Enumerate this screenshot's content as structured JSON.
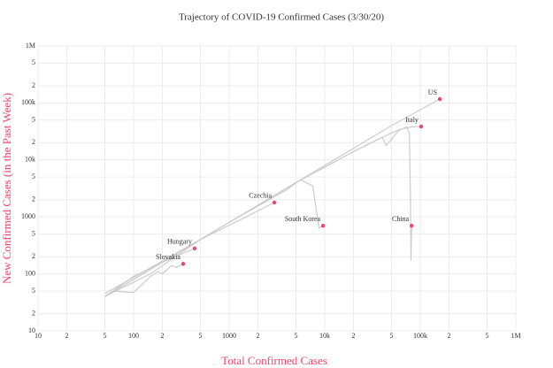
{
  "chart_data": {
    "type": "line",
    "title": "Trajectory of COVID-19 Confirmed Cases (3/30/20)",
    "x_label": "Total Confirmed Cases",
    "y_label": "New Confirmed Cases (in the Past Week)",
    "log_x": true,
    "log_y": true,
    "grid": true,
    "point_color": "#f0466e",
    "xlim": [
      10,
      1000000
    ],
    "ylim": [
      10,
      1000000
    ],
    "xticks": [
      10,
      {
        "value": 20,
        "label": "2"
      },
      {
        "value": 50,
        "label": "5"
      },
      100,
      {
        "value": 200,
        "label": "2"
      },
      {
        "value": 500,
        "label": "5"
      },
      1000,
      {
        "value": 2000,
        "label": "2"
      },
      {
        "value": 5000,
        "label": "5"
      },
      {
        "value": 10000,
        "label": "10k"
      },
      {
        "value": 20000,
        "label": "2"
      },
      {
        "value": 50000,
        "label": "5"
      },
      {
        "value": 100000,
        "label": "100k"
      },
      {
        "value": 200000,
        "label": "2"
      },
      {
        "value": 500000,
        "label": "5"
      },
      {
        "value": 1000000,
        "label": "1M"
      }
    ],
    "yticks": [
      10,
      {
        "value": 20,
        "label": "2"
      },
      {
        "value": 50,
        "label": "5"
      },
      100,
      {
        "value": 200,
        "label": "2"
      },
      {
        "value": 500,
        "label": "5"
      },
      1000,
      {
        "value": 2000,
        "label": "2"
      },
      {
        "value": 5000,
        "label": "5"
      },
      {
        "value": 10000,
        "label": "10k"
      },
      {
        "value": 20000,
        "label": "2"
      },
      {
        "value": 50000,
        "label": "5"
      },
      {
        "value": 100000,
        "label": "100k"
      },
      {
        "value": 200000,
        "label": "2"
      },
      {
        "value": 500000,
        "label": "5"
      },
      {
        "value": 1000000,
        "label": "1M"
      }
    ],
    "series": [
      {
        "name": "US",
        "color": "#cccccc",
        "x": [
          50,
          100,
          1000,
          10000,
          50000,
          160000
        ],
        "values": [
          40,
          80,
          800,
          8000,
          40000,
          117000
        ]
      },
      {
        "name": "Italy",
        "color": "#cccccc",
        "x": [
          50,
          500,
          5000,
          20000,
          40000,
          60000,
          80000,
          102000
        ],
        "values": [
          45,
          400,
          4000,
          14000,
          25000,
          34000,
          38000,
          38600
        ]
      },
      {
        "name": "China",
        "color": "#cccccc",
        "x": [
          500,
          5000,
          20000,
          40000,
          44000,
          60000,
          72000,
          77000,
          79000,
          80000,
          81000
        ],
        "values": [
          400,
          4000,
          14000,
          25000,
          18000,
          33000,
          38000,
          30000,
          2000,
          170,
          700
        ]
      },
      {
        "name": "South Korea",
        "color": "#cccccc",
        "x": [
          50,
          1000,
          4000,
          5600,
          7500,
          8700,
          9600
        ],
        "values": [
          40,
          800,
          3000,
          4500,
          3500,
          640,
          700
        ]
      },
      {
        "name": "Czechia",
        "color": "#cccccc",
        "x": [
          50,
          150,
          500,
          1500,
          2970
        ],
        "values": [
          40,
          100,
          400,
          1000,
          1790
        ]
      },
      {
        "name": "Hungary",
        "color": "#cccccc",
        "x": [
          50,
          100,
          200,
          435
        ],
        "values": [
          40,
          90,
          160,
          280
        ]
      },
      {
        "name": "Slovakia",
        "color": "#cccccc",
        "x": [
          60,
          100,
          150,
          180,
          200,
          250,
          280,
          330
        ],
        "values": [
          50,
          47,
          90,
          110,
          100,
          140,
          130,
          150
        ]
      }
    ]
  }
}
